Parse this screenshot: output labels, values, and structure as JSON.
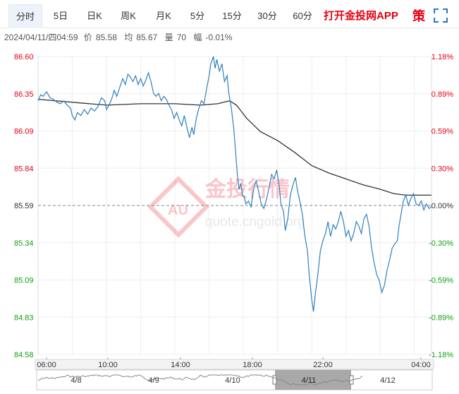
{
  "toolbar": {
    "tabs": [
      {
        "label": "分时",
        "active": true
      },
      {
        "label": "5日",
        "active": false
      },
      {
        "label": "日K",
        "active": false
      },
      {
        "label": "周K",
        "active": false
      },
      {
        "label": "月K",
        "active": false
      },
      {
        "label": "5分",
        "active": false
      },
      {
        "label": "15分",
        "active": false
      },
      {
        "label": "30分",
        "active": false
      },
      {
        "label": "60分",
        "active": false
      }
    ],
    "promo_label": "打开金投网APP",
    "icons": [
      "strategy-icon",
      "fullscreen-icon"
    ],
    "strategy_label": "策"
  },
  "info": {
    "datetime": "2024/04/11/四04:59",
    "price_label": "价",
    "price": "85.58",
    "avg_label": "均",
    "avg": "85.67",
    "volume_label": "量",
    "volume": "70",
    "change_label": "幅",
    "change": "-0.01%"
  },
  "watermark": {
    "logo_text": "AU",
    "cn_text": "金投行情",
    "url_text": "quote.cngold.org"
  },
  "colors": {
    "price_line": "#2f7fbf",
    "avg_line": "#333333",
    "up": "#e60012",
    "down": "#11a011",
    "axis_text": "#333333",
    "grid": "#eeeeee"
  },
  "chart_data": {
    "type": "line",
    "title": "",
    "xlabel": "",
    "ylabel": "",
    "x_ticks": [
      "06:00",
      "10:00",
      "14:00",
      "18:00",
      "22:00",
      "04:00"
    ],
    "y_ticks": [
      "86.60",
      "86.35",
      "86.09",
      "85.84",
      "85.59",
      "85.34",
      "85.09",
      "84.83",
      "84.58"
    ],
    "pct_ticks": [
      "1.18%",
      "0.89%",
      "0.59%",
      "0.30%",
      "0.00%",
      "-0.30%",
      "-0.59%",
      "-0.89%",
      "-1.18%"
    ],
    "ylim": [
      84.58,
      86.6
    ],
    "baseline": 85.59,
    "x_range_hours": [
      6,
      29
    ],
    "series": [
      {
        "key": "price",
        "points": [
          [
            6.0,
            86.3
          ],
          [
            6.15,
            86.34
          ],
          [
            6.3,
            86.33
          ],
          [
            6.5,
            86.36
          ],
          [
            6.7,
            86.32
          ],
          [
            6.9,
            86.31
          ],
          [
            7.1,
            86.29
          ],
          [
            7.3,
            86.28
          ],
          [
            7.5,
            86.3
          ],
          [
            7.7,
            86.27
          ],
          [
            7.9,
            86.25
          ],
          [
            8.0,
            86.2
          ],
          [
            8.15,
            86.17
          ],
          [
            8.3,
            86.22
          ],
          [
            8.5,
            86.2
          ],
          [
            8.7,
            86.24
          ],
          [
            8.9,
            86.21
          ],
          [
            9.1,
            86.25
          ],
          [
            9.3,
            86.23
          ],
          [
            9.5,
            86.26
          ],
          [
            9.7,
            86.32
          ],
          [
            9.9,
            86.3
          ],
          [
            10.0,
            86.24
          ],
          [
            10.15,
            86.27
          ],
          [
            10.3,
            86.31
          ],
          [
            10.45,
            86.37
          ],
          [
            10.6,
            86.33
          ],
          [
            10.8,
            86.4
          ],
          [
            10.95,
            86.45
          ],
          [
            11.1,
            86.41
          ],
          [
            11.25,
            86.48
          ],
          [
            11.4,
            86.46
          ],
          [
            11.55,
            86.43
          ],
          [
            11.7,
            86.47
          ],
          [
            11.85,
            86.41
          ],
          [
            12.0,
            86.45
          ],
          [
            12.15,
            86.4
          ],
          [
            12.3,
            86.44
          ],
          [
            12.45,
            86.49
          ],
          [
            12.6,
            86.43
          ],
          [
            12.75,
            86.35
          ],
          [
            12.9,
            86.33
          ],
          [
            13.05,
            86.35
          ],
          [
            13.2,
            86.3
          ],
          [
            13.35,
            86.33
          ],
          [
            13.5,
            86.31
          ],
          [
            13.65,
            86.27
          ],
          [
            13.8,
            86.24
          ],
          [
            13.95,
            86.18
          ],
          [
            14.1,
            86.22
          ],
          [
            14.25,
            86.17
          ],
          [
            14.4,
            86.13
          ],
          [
            14.55,
            86.2
          ],
          [
            14.7,
            86.12
          ],
          [
            14.85,
            86.05
          ],
          [
            15.0,
            86.12
          ],
          [
            15.1,
            86.07
          ],
          [
            15.25,
            86.18
          ],
          [
            15.4,
            86.25
          ],
          [
            15.55,
            86.3
          ],
          [
            15.7,
            86.28
          ],
          [
            15.85,
            86.38
          ],
          [
            16.0,
            86.47
          ],
          [
            16.1,
            86.55
          ],
          [
            16.25,
            86.6
          ],
          [
            16.35,
            86.52
          ],
          [
            16.45,
            86.58
          ],
          [
            16.6,
            86.5
          ],
          [
            16.75,
            86.55
          ],
          [
            16.9,
            86.43
          ],
          [
            17.05,
            86.47
          ],
          [
            17.15,
            86.35
          ],
          [
            17.3,
            86.25
          ],
          [
            17.45,
            86.1
          ],
          [
            17.55,
            85.95
          ],
          [
            17.65,
            85.8
          ],
          [
            17.75,
            85.7
          ],
          [
            17.85,
            85.74
          ],
          [
            17.95,
            85.66
          ],
          [
            18.05,
            85.65
          ],
          [
            18.15,
            85.6
          ],
          [
            18.3,
            85.62
          ],
          [
            18.45,
            85.58
          ],
          [
            18.6,
            85.7
          ],
          [
            18.75,
            85.76
          ],
          [
            18.9,
            85.68
          ],
          [
            19.05,
            85.6
          ],
          [
            19.2,
            85.57
          ],
          [
            19.35,
            85.63
          ],
          [
            19.5,
            85.71
          ],
          [
            19.65,
            85.8
          ],
          [
            19.8,
            85.77
          ],
          [
            19.95,
            85.83
          ],
          [
            20.1,
            85.72
          ],
          [
            20.2,
            85.6
          ],
          [
            20.35,
            85.55
          ],
          [
            20.45,
            85.42
          ],
          [
            20.6,
            85.5
          ],
          [
            20.75,
            85.66
          ],
          [
            20.9,
            85.73
          ],
          [
            21.05,
            85.78
          ],
          [
            21.15,
            85.7
          ],
          [
            21.3,
            85.62
          ],
          [
            21.45,
            85.53
          ],
          [
            21.6,
            85.38
          ],
          [
            21.75,
            85.28
          ],
          [
            21.85,
            85.12
          ],
          [
            22.0,
            84.95
          ],
          [
            22.1,
            84.87
          ],
          [
            22.2,
            84.98
          ],
          [
            22.35,
            85.12
          ],
          [
            22.5,
            85.28
          ],
          [
            22.65,
            85.35
          ],
          [
            22.8,
            85.4
          ],
          [
            22.95,
            85.48
          ],
          [
            23.1,
            85.38
          ],
          [
            23.25,
            85.46
          ],
          [
            23.4,
            85.43
          ],
          [
            23.55,
            85.48
          ],
          [
            23.7,
            85.55
          ],
          [
            23.85,
            85.48
          ],
          [
            24.0,
            85.38
          ],
          [
            24.15,
            85.42
          ],
          [
            24.3,
            85.35
          ],
          [
            24.45,
            85.4
          ],
          [
            24.6,
            85.48
          ],
          [
            24.75,
            85.45
          ],
          [
            24.9,
            85.4
          ],
          [
            25.05,
            85.5
          ],
          [
            25.2,
            85.53
          ],
          [
            25.35,
            85.45
          ],
          [
            25.5,
            85.3
          ],
          [
            25.65,
            85.2
          ],
          [
            25.8,
            85.12
          ],
          [
            25.95,
            85.08
          ],
          [
            26.1,
            85.0
          ],
          [
            26.25,
            85.05
          ],
          [
            26.4,
            85.15
          ],
          [
            26.55,
            85.22
          ],
          [
            26.7,
            85.3
          ],
          [
            26.85,
            85.33
          ],
          [
            27.0,
            85.35
          ],
          [
            27.1,
            85.45
          ],
          [
            27.25,
            85.55
          ],
          [
            27.35,
            85.62
          ],
          [
            27.5,
            85.66
          ],
          [
            27.65,
            85.59
          ],
          [
            27.8,
            85.64
          ],
          [
            27.95,
            85.67
          ],
          [
            28.1,
            85.6
          ],
          [
            28.25,
            85.59
          ],
          [
            28.4,
            85.62
          ],
          [
            28.55,
            85.56
          ],
          [
            28.7,
            85.6
          ],
          [
            28.85,
            85.57
          ],
          [
            29.0,
            85.58
          ]
        ]
      },
      {
        "key": "average",
        "points": [
          [
            6.0,
            86.31
          ],
          [
            8.0,
            86.29
          ],
          [
            10.0,
            86.27
          ],
          [
            12.0,
            86.28
          ],
          [
            14.0,
            86.28
          ],
          [
            15.5,
            86.27
          ],
          [
            16.5,
            86.28
          ],
          [
            17.2,
            86.3
          ],
          [
            17.6,
            86.27
          ],
          [
            18.2,
            86.18
          ],
          [
            19.0,
            86.09
          ],
          [
            20.0,
            86.03
          ],
          [
            21.0,
            85.95
          ],
          [
            22.0,
            85.86
          ],
          [
            23.0,
            85.81
          ],
          [
            24.0,
            85.77
          ],
          [
            25.0,
            85.73
          ],
          [
            26.0,
            85.7
          ],
          [
            26.8,
            85.67
          ],
          [
            27.5,
            85.66
          ],
          [
            29.0,
            85.66
          ]
        ]
      }
    ]
  },
  "navigator": {
    "date_labels": [
      "4/8",
      "4/9",
      "4/10",
      "4/11",
      "4/12"
    ],
    "selected_index": 3
  }
}
